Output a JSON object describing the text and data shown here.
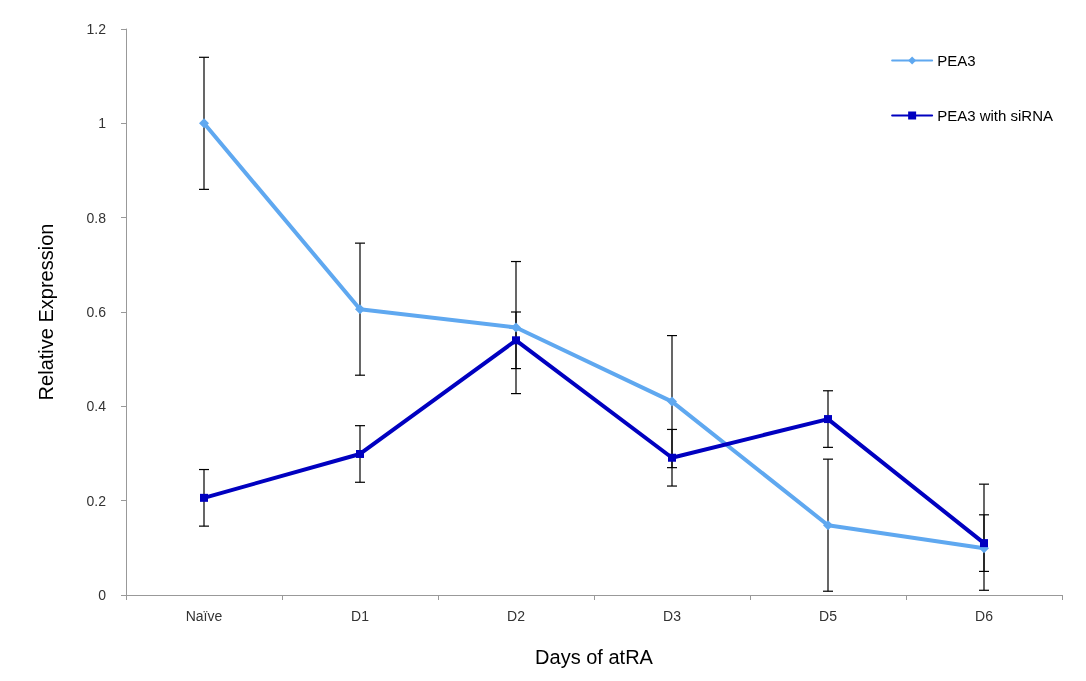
{
  "chart_data": {
    "type": "line",
    "xlabel": "Days of atRA",
    "ylabel": "Relative Expression",
    "categories": [
      "Naïve",
      "D1",
      "D2",
      "D3",
      "D5",
      "D6"
    ],
    "series": [
      {
        "name": "PEA3",
        "color": "#5fa8f0",
        "marker": "diamond",
        "values": [
          1.0,
          0.606,
          0.567,
          0.41,
          0.148,
          0.099
        ],
        "errors": [
          0.14,
          0.14,
          0.14,
          0.14,
          0.14,
          [
            0.01,
            0.235
          ]
        ]
      },
      {
        "name": "PEA3 with siRNA",
        "color": "#0000c0",
        "marker": "square",
        "values": [
          0.206,
          0.299,
          0.54,
          0.291,
          0.373,
          0.11
        ],
        "errors": [
          0.06,
          0.06,
          0.06,
          0.06,
          0.06,
          0.06
        ]
      }
    ],
    "ylim": [
      0,
      1.2
    ],
    "yticks": [
      0,
      0.2,
      0.4,
      0.6,
      0.8,
      1,
      1.2
    ],
    "grid": false,
    "legend": "top right",
    "line_style": "solid"
  }
}
